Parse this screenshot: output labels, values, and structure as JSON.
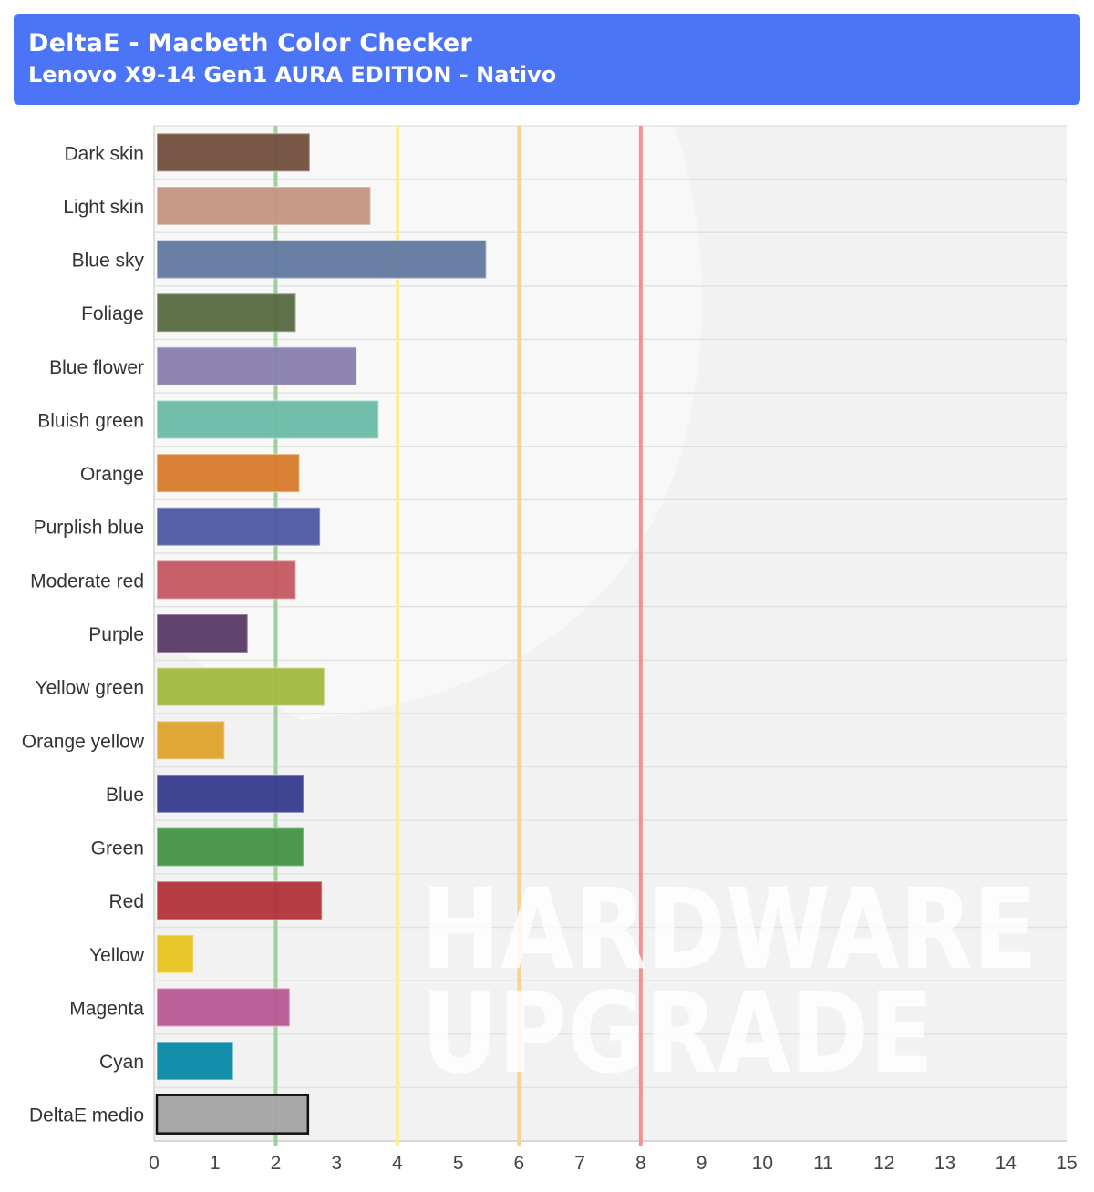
{
  "header": {
    "title": "DeltaE - Macbeth Color Checker",
    "subtitle": "Lenovo X9-14 Gen1 AURA EDITION - Nativo"
  },
  "watermark": {
    "line1": "HARDWARE",
    "line2": "UPGRADE"
  },
  "chart_data": {
    "type": "bar",
    "orientation": "horizontal",
    "categories": [
      "Dark skin",
      "Light skin",
      "Blue sky",
      "Foliage",
      "Blue flower",
      "Bluish green",
      "Orange",
      "Purplish blue",
      "Moderate red",
      "Purple",
      "Yellow green",
      "Orange yellow",
      "Blue",
      "Green",
      "Red",
      "Yellow",
      "Magenta",
      "Cyan",
      "DeltaE medio"
    ],
    "values": [
      2.56,
      3.56,
      5.46,
      2.33,
      3.33,
      3.69,
      2.39,
      2.73,
      2.33,
      1.54,
      2.8,
      1.16,
      2.46,
      2.46,
      2.76,
      0.65,
      2.23,
      1.3,
      2.53
    ],
    "colors": [
      "#74503f",
      "#c49682",
      "#637ba0",
      "#596c45",
      "#8980b0",
      "#6bbca8",
      "#d77d2d",
      "#4f5aa3",
      "#c45b63",
      "#5c3b68",
      "#a2bb40",
      "#e0a42f",
      "#383d8f",
      "#469447",
      "#b2343b",
      "#e8c51f",
      "#ba5895",
      "#0a89a7",
      "#a6a6a6"
    ],
    "xlim": [
      0,
      15
    ],
    "xticks": [
      0,
      1,
      2,
      3,
      4,
      5,
      6,
      7,
      8,
      9,
      10,
      11,
      12,
      13,
      14,
      15
    ],
    "reference_lines": [
      {
        "x": 2,
        "color": "#9fcf9a"
      },
      {
        "x": 4,
        "color": "#fbee98"
      },
      {
        "x": 6,
        "color": "#fad290"
      },
      {
        "x": 8,
        "color": "#f29393"
      }
    ],
    "grid": true,
    "legend": "none"
  }
}
